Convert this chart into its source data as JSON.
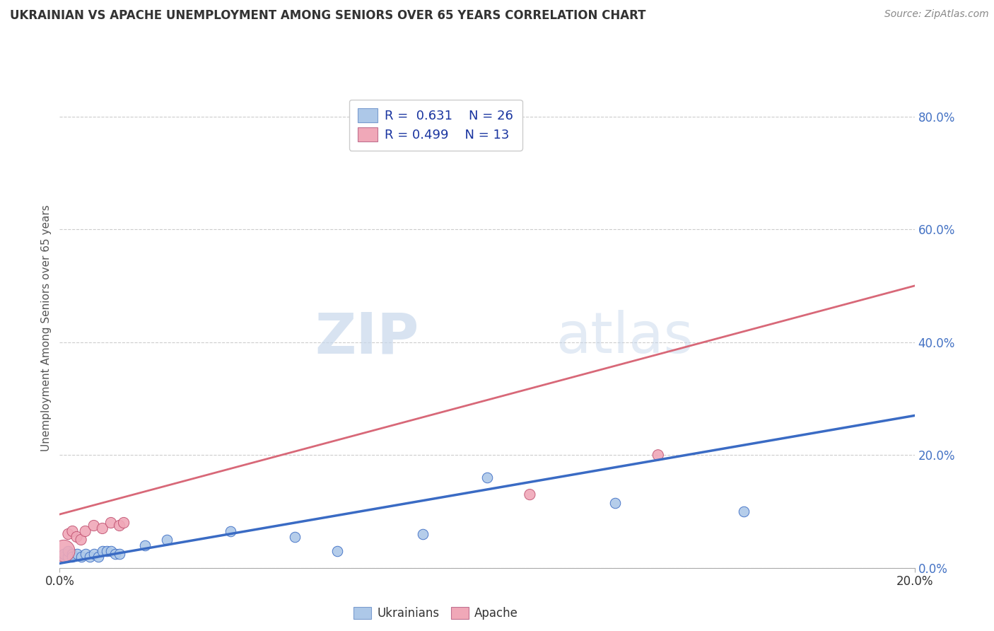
{
  "title": "UKRAINIAN VS APACHE UNEMPLOYMENT AMONG SENIORS OVER 65 YEARS CORRELATION CHART",
  "source": "Source: ZipAtlas.com",
  "ylabel": "Unemployment Among Seniors over 65 years",
  "xlim": [
    0.0,
    0.2
  ],
  "ylim": [
    0.0,
    0.85
  ],
  "x_ticks": [
    0.0,
    0.2
  ],
  "x_tick_labels": [
    "0.0%",
    "20.0%"
  ],
  "y_tick_labels": [
    "0.0%",
    "20.0%",
    "40.0%",
    "60.0%",
    "80.0%"
  ],
  "y_ticks": [
    0.0,
    0.2,
    0.4,
    0.6,
    0.8
  ],
  "ukrainians_R": "0.631",
  "ukrainians_N": "26",
  "apache_R": "0.499",
  "apache_N": "13",
  "ukrainians_color": "#adc8e8",
  "apache_color": "#f0a8b8",
  "trend_ukrainian_color": "#3a6bc4",
  "trend_apache_color": "#d86878",
  "ukrainians_x": [
    0.001,
    0.001,
    0.002,
    0.002,
    0.003,
    0.003,
    0.004,
    0.005,
    0.006,
    0.007,
    0.008,
    0.009,
    0.01,
    0.011,
    0.012,
    0.013,
    0.014,
    0.02,
    0.025,
    0.04,
    0.055,
    0.065,
    0.085,
    0.1,
    0.13,
    0.16
  ],
  "ukrainians_y": [
    0.02,
    0.025,
    0.02,
    0.03,
    0.025,
    0.02,
    0.025,
    0.02,
    0.025,
    0.02,
    0.025,
    0.02,
    0.03,
    0.03,
    0.03,
    0.025,
    0.025,
    0.04,
    0.05,
    0.065,
    0.055,
    0.03,
    0.06,
    0.16,
    0.115,
    0.1
  ],
  "apache_x": [
    0.001,
    0.002,
    0.003,
    0.004,
    0.005,
    0.006,
    0.008,
    0.01,
    0.012,
    0.014,
    0.015,
    0.11,
    0.14
  ],
  "apache_y": [
    0.03,
    0.06,
    0.065,
    0.055,
    0.05,
    0.065,
    0.075,
    0.07,
    0.08,
    0.075,
    0.08,
    0.13,
    0.2
  ],
  "apache_big_first": true,
  "trend_ukr_x0": 0.0,
  "trend_ukr_y0": 0.008,
  "trend_ukr_x1": 0.2,
  "trend_ukr_y1": 0.27,
  "trend_apa_x0": 0.0,
  "trend_apa_y0": 0.095,
  "trend_apa_x1": 0.2,
  "trend_apa_y1": 0.5
}
